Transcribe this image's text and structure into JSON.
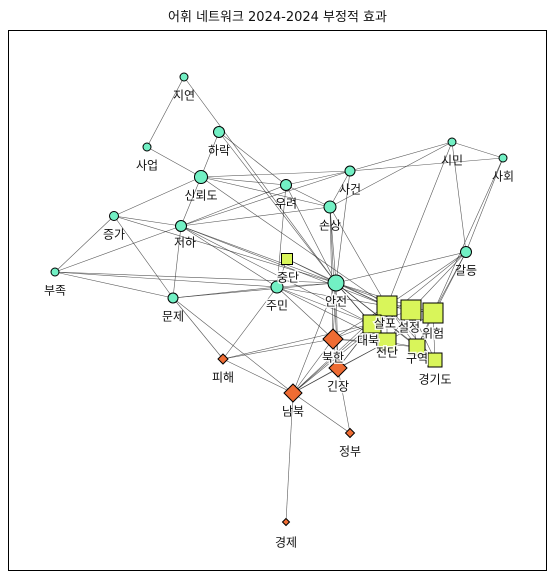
{
  "title": "어휘 네트워크 2024-2024 부정적 효과",
  "colors": {
    "circle_fill": "#72f0c4",
    "square_fill": "#d9f55a",
    "diamond_fill": "#ef6c33",
    "edge": "#222222",
    "label_halo": "#ffffff"
  },
  "nodes": [
    {
      "id": "jiyeon",
      "label": "지연",
      "shape": "circle",
      "size": 8
    },
    {
      "id": "saeop",
      "label": "사업",
      "shape": "circle",
      "size": 8
    },
    {
      "id": "harak",
      "label": "하락",
      "shape": "circle",
      "size": 11
    },
    {
      "id": "sinroedo",
      "label": "신뢰도",
      "shape": "circle",
      "size": 13
    },
    {
      "id": "ureo",
      "label": "우려",
      "shape": "circle",
      "size": 11
    },
    {
      "id": "sageon",
      "label": "사건",
      "shape": "circle",
      "size": 10
    },
    {
      "id": "simin",
      "label": "시민",
      "shape": "circle",
      "size": 8
    },
    {
      "id": "sahoe",
      "label": "사회",
      "shape": "circle",
      "size": 8
    },
    {
      "id": "jeungga",
      "label": "증가",
      "shape": "circle",
      "size": 9
    },
    {
      "id": "jeoha",
      "label": "저하",
      "shape": "circle",
      "size": 11
    },
    {
      "id": "sonsang",
      "label": "손상",
      "shape": "circle",
      "size": 12
    },
    {
      "id": "galdeung",
      "label": "갈등",
      "shape": "circle",
      "size": 11
    },
    {
      "id": "bujok",
      "label": "부족",
      "shape": "circle",
      "size": 8
    },
    {
      "id": "munje",
      "label": "문제",
      "shape": "circle",
      "size": 10
    },
    {
      "id": "jungdan",
      "label": "중단",
      "shape": "square",
      "size": 11
    },
    {
      "id": "jumin",
      "label": "주민",
      "shape": "circle",
      "size": 12
    },
    {
      "id": "anjeon",
      "label": "안전",
      "shape": "circle",
      "size": 16
    },
    {
      "id": "sarap",
      "label": "살포",
      "shape": "square",
      "size": 20
    },
    {
      "id": "seoljeong",
      "label": "설정",
      "shape": "square",
      "size": 20
    },
    {
      "id": "wiheom",
      "label": "위험",
      "shape": "square",
      "size": 20
    },
    {
      "id": "daebuk",
      "label": "대북",
      "shape": "square",
      "size": 18
    },
    {
      "id": "jeondan",
      "label": "전단",
      "shape": "square",
      "size": 18
    },
    {
      "id": "guyeok",
      "label": "구역",
      "shape": "square",
      "size": 16
    },
    {
      "id": "gyeonggido",
      "label": "경기도",
      "shape": "square",
      "size": 14
    },
    {
      "id": "bukhan",
      "label": "북한",
      "shape": "diamond",
      "size": 20
    },
    {
      "id": "ginjang",
      "label": "긴장",
      "shape": "diamond",
      "size": 18
    },
    {
      "id": "pihae",
      "label": "피해",
      "shape": "diamond",
      "size": 10
    },
    {
      "id": "nambuk",
      "label": "남북",
      "shape": "diamond",
      "size": 18
    },
    {
      "id": "jeongbu",
      "label": "정부",
      "shape": "diamond",
      "size": 9
    },
    {
      "id": "gyeongje",
      "label": "경제",
      "shape": "diamond",
      "size": 7
    }
  ],
  "edges": [
    [
      "jiyeon",
      "saeop"
    ],
    [
      "jiyeon",
      "anjeon"
    ],
    [
      "harak",
      "sinroedo"
    ],
    [
      "harak",
      "ureo"
    ],
    [
      "harak",
      "anjeon"
    ],
    [
      "saeop",
      "sinroedo"
    ],
    [
      "sinroedo",
      "ureo"
    ],
    [
      "sinroedo",
      "sageon"
    ],
    [
      "sinroedo",
      "jeoha"
    ],
    [
      "sinroedo",
      "jeungga"
    ],
    [
      "sinroedo",
      "sarap"
    ],
    [
      "sinroedo",
      "sonsang"
    ],
    [
      "ureo",
      "sageon"
    ],
    [
      "ureo",
      "sonsang"
    ],
    [
      "ureo",
      "anjeon"
    ],
    [
      "ureo",
      "jumin"
    ],
    [
      "ureo",
      "jeoha"
    ],
    [
      "sageon",
      "simin"
    ],
    [
      "sageon",
      "sahoe"
    ],
    [
      "sageon",
      "sonsang"
    ],
    [
      "sageon",
      "jeoha"
    ],
    [
      "sageon",
      "anjeon"
    ],
    [
      "simin",
      "sahoe"
    ],
    [
      "simin",
      "galdeung"
    ],
    [
      "simin",
      "sonsang"
    ],
    [
      "simin",
      "sarap"
    ],
    [
      "sahoe",
      "galdeung"
    ],
    [
      "sahoe",
      "wiheom"
    ],
    [
      "jeungga",
      "jeoha"
    ],
    [
      "jeungga",
      "bujok"
    ],
    [
      "jeungga",
      "munje"
    ],
    [
      "jeungga",
      "anjeon"
    ],
    [
      "jeoha",
      "anjeon"
    ],
    [
      "jeoha",
      "sarap"
    ],
    [
      "jeoha",
      "munje"
    ],
    [
      "jeoha",
      "jumin"
    ],
    [
      "jeoha",
      "daebuk"
    ],
    [
      "jeoha",
      "bujok"
    ],
    [
      "jeoha",
      "sonsang"
    ],
    [
      "sonsang",
      "anjeon"
    ],
    [
      "sonsang",
      "sarap"
    ],
    [
      "sonsang",
      "bukhan"
    ],
    [
      "sonsang",
      "ginjang"
    ],
    [
      "galdeung",
      "anjeon"
    ],
    [
      "galdeung",
      "sarap"
    ],
    [
      "galdeung",
      "wiheom"
    ],
    [
      "galdeung",
      "guyeok"
    ],
    [
      "galdeung",
      "nambuk"
    ],
    [
      "galdeung",
      "seoljeong"
    ],
    [
      "bujok",
      "munje"
    ],
    [
      "bujok",
      "jumin"
    ],
    [
      "bujok",
      "anjeon"
    ],
    [
      "munje",
      "jumin"
    ],
    [
      "munje",
      "anjeon"
    ],
    [
      "munje",
      "nambuk"
    ],
    [
      "munje",
      "pihae"
    ],
    [
      "jungdan",
      "anjeon"
    ],
    [
      "jungdan",
      "sarap"
    ],
    [
      "jungdan",
      "jumin"
    ],
    [
      "jumin",
      "anjeon"
    ],
    [
      "jumin",
      "sarap"
    ],
    [
      "jumin",
      "daebuk"
    ],
    [
      "jumin",
      "bukhan"
    ],
    [
      "jumin",
      "pihae"
    ],
    [
      "jumin",
      "jeondan"
    ],
    [
      "anjeon",
      "sarap"
    ],
    [
      "anjeon",
      "seoljeong"
    ],
    [
      "anjeon",
      "wiheom"
    ],
    [
      "anjeon",
      "daebuk"
    ],
    [
      "anjeon",
      "jeondan"
    ],
    [
      "anjeon",
      "guyeok"
    ],
    [
      "anjeon",
      "gyeonggido"
    ],
    [
      "anjeon",
      "bukhan"
    ],
    [
      "anjeon",
      "ginjang"
    ],
    [
      "anjeon",
      "nambuk"
    ],
    [
      "sarap",
      "seoljeong"
    ],
    [
      "sarap",
      "wiheom"
    ],
    [
      "sarap",
      "daebuk"
    ],
    [
      "sarap",
      "jeondan"
    ],
    [
      "sarap",
      "guyeok"
    ],
    [
      "sarap",
      "bukhan"
    ],
    [
      "sarap",
      "ginjang"
    ],
    [
      "sarap",
      "nambuk"
    ],
    [
      "sarap",
      "gyeonggido"
    ],
    [
      "seoljeong",
      "wiheom"
    ],
    [
      "seoljeong",
      "guyeok"
    ],
    [
      "seoljeong",
      "daebuk"
    ],
    [
      "seoljeong",
      "jeondan"
    ],
    [
      "seoljeong",
      "gyeonggido"
    ],
    [
      "wiheom",
      "guyeok"
    ],
    [
      "wiheom",
      "jeondan"
    ],
    [
      "wiheom",
      "gyeonggido"
    ],
    [
      "daebuk",
      "jeondan"
    ],
    [
      "daebuk",
      "bukhan"
    ],
    [
      "daebuk",
      "ginjang"
    ],
    [
      "daebuk",
      "nambuk"
    ],
    [
      "daebuk",
      "pihae"
    ],
    [
      "jeondan",
      "bukhan"
    ],
    [
      "jeondan",
      "ginjang"
    ],
    [
      "jeondan",
      "nambuk"
    ],
    [
      "jeondan",
      "guyeok"
    ],
    [
      "guyeok",
      "gyeonggido"
    ],
    [
      "guyeok",
      "bukhan"
    ],
    [
      "bukhan",
      "ginjang"
    ],
    [
      "bukhan",
      "nambuk"
    ],
    [
      "bukhan",
      "pihae"
    ],
    [
      "ginjang",
      "nambuk"
    ],
    [
      "ginjang",
      "jeongbu"
    ],
    [
      "nambuk",
      "jeongbu"
    ],
    [
      "nambuk",
      "gyeongje"
    ],
    [
      "nambuk",
      "pihae"
    ]
  ]
}
